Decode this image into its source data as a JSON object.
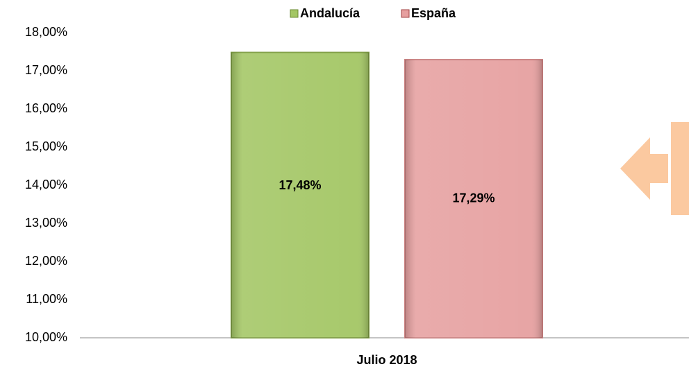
{
  "chart_data": {
    "type": "bar",
    "categories": [
      "Julio 2018"
    ],
    "series": [
      {
        "name": "Andalucía",
        "color": "#a3c664",
        "values": [
          17.48
        ],
        "value_labels": [
          "17,48%"
        ]
      },
      {
        "name": "España",
        "color": "#e6a0a0",
        "values": [
          17.29
        ],
        "value_labels": [
          "17,29%"
        ]
      }
    ],
    "ylim": [
      10,
      18
    ],
    "yticks": [
      {
        "value": 10,
        "label": "10,00%"
      },
      {
        "value": 11,
        "label": "11,00%"
      },
      {
        "value": 12,
        "label": "12,00%"
      },
      {
        "value": 13,
        "label": "13,00%"
      },
      {
        "value": 14,
        "label": "14,00%"
      },
      {
        "value": 15,
        "label": "15,00%"
      },
      {
        "value": 16,
        "label": "16,00%"
      },
      {
        "value": 17,
        "label": "17,00%"
      },
      {
        "value": 18,
        "label": "18,00%"
      }
    ],
    "legend": "top"
  }
}
